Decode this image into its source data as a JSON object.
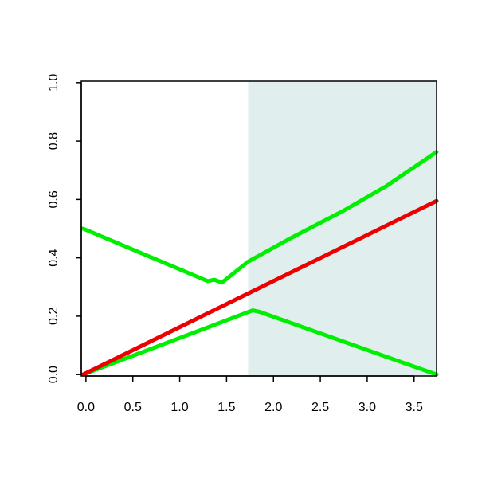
{
  "chart_data": {
    "type": "line",
    "xlim": [
      -0.05,
      3.74
    ],
    "ylim": [
      -0.005,
      1.005
    ],
    "xticks": [
      {
        "value": 0,
        "label": "0.0"
      },
      {
        "value": 0.5,
        "label": "0.5"
      },
      {
        "value": 1,
        "label": "1.0"
      },
      {
        "value": 1.5,
        "label": "1.5"
      },
      {
        "value": 2,
        "label": "2.0"
      },
      {
        "value": 2.5,
        "label": "2.5"
      },
      {
        "value": 3,
        "label": "3.0"
      },
      {
        "value": 3.5,
        "label": "3.5"
      }
    ],
    "yticks": [
      {
        "value": 0,
        "label": "0.0"
      },
      {
        "value": 0.2,
        "label": "0.2"
      },
      {
        "value": 0.4,
        "label": "0.4"
      },
      {
        "value": 0.6,
        "label": "0.6"
      },
      {
        "value": 0.8,
        "label": "0.8"
      },
      {
        "value": 1,
        "label": "1.0"
      }
    ],
    "shade_xlim": [
      1.73,
      3.74
    ],
    "shade_color": "#e0eeee",
    "series": [
      {
        "color": "#00ee00",
        "x": [
          -0.03,
          1.3,
          1.37,
          1.45,
          1.73,
          2.2,
          2.74,
          3.2,
          3.74
        ],
        "values": [
          0.5,
          0.32,
          0.325,
          0.315,
          0.387,
          0.47,
          0.56,
          0.645,
          0.763
        ]
      },
      {
        "color": "#00ee00",
        "x": [
          -0.03,
          1.78,
          1.85,
          3.74
        ],
        "values": [
          0.0,
          0.22,
          0.215,
          0.0
        ]
      },
      {
        "color": "#ee0000",
        "x": [
          -0.03,
          3.74
        ],
        "values": [
          0.0,
          0.595
        ]
      }
    ]
  }
}
